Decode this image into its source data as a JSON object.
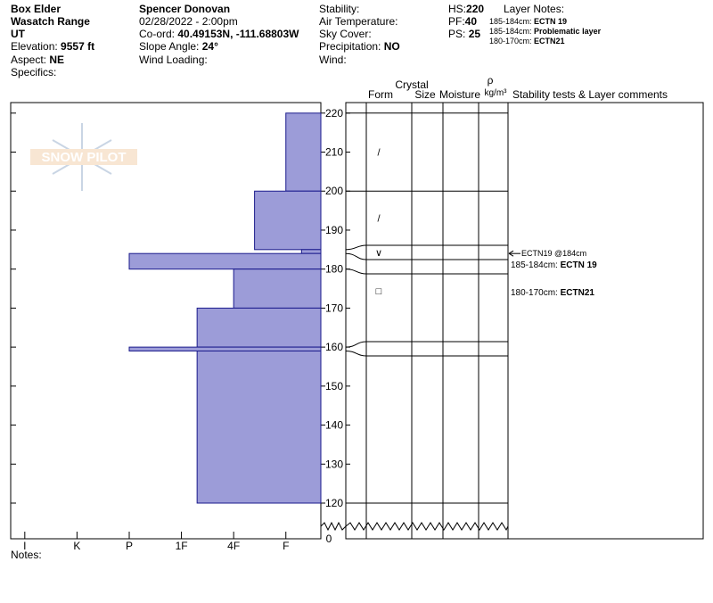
{
  "header": {
    "location": [
      "Box Elder",
      "Wasatch Range",
      "UT"
    ],
    "elevation": {
      "label": "Elevation:",
      "value": "9557 ft"
    },
    "aspect": {
      "label": "Aspect:",
      "value": "NE"
    },
    "specifics": "Specifics:",
    "observer": "Spencer Donovan",
    "datetime": "02/28/2022 - 2:00pm",
    "coord": {
      "label": "Co-ord:",
      "value": "40.49153N, -111.68803W"
    },
    "slope": {
      "label": "Slope Angle:",
      "value": "24°"
    },
    "wind_loading": "Wind Loading:",
    "stability": "Stability:",
    "air_temp": "Air Temperature:",
    "sky": "Sky Cover:",
    "precip": {
      "label": "Precipitation:",
      "value": "NO"
    },
    "wind": "Wind:",
    "hs": {
      "label": "HS:",
      "value": 220
    },
    "pf": {
      "label": "PF:",
      "value": 40
    },
    "ps": {
      "label": "PS:",
      "value": 25
    },
    "layer_notes": {
      "title": "Layer Notes:",
      "items": [
        {
          "range": "185-184cm:",
          "note": "ECTN 19"
        },
        {
          "range": "185-184cm:",
          "note": "Problematic layer"
        },
        {
          "range": "180-170cm:",
          "note": "ECTN21"
        }
      ]
    }
  },
  "profile": {
    "logo": "SNOW PILOT",
    "columns": {
      "form": "Form",
      "crystal": "Crystal",
      "size": "Size",
      "moisture": "Moisture",
      "rho": "ρ",
      "density_unit": "kg/m³",
      "comments": "Stability tests & Layer comments"
    },
    "hardness_lim": [
      0.73,
      6.67
    ],
    "hardness_ticks": [
      {
        "value": 1,
        "label": "I"
      },
      {
        "value": 2,
        "label": "K"
      },
      {
        "value": 3,
        "label": "P"
      },
      {
        "value": 4,
        "label": "1F"
      },
      {
        "value": 5,
        "label": "4F"
      },
      {
        "value": 6,
        "label": "F"
      }
    ],
    "depth_lim": [
      120,
      222.7
    ],
    "depth_ticks": [
      120,
      130,
      140,
      150,
      160,
      170,
      180,
      190,
      200,
      210,
      220
    ],
    "depth_zero": 0,
    "layers": [
      {
        "top": 220,
        "bottom": 200,
        "hardness": 6,
        "form": "/"
      },
      {
        "top": 200,
        "bottom": 185,
        "hardness": 5.4,
        "form": "/"
      },
      {
        "top": 185,
        "bottom": 184,
        "hardness": 6.3,
        "form": "∨"
      },
      {
        "top": 184,
        "bottom": 180,
        "hardness": 3
      },
      {
        "top": 180,
        "bottom": 170,
        "hardness": 5,
        "form": "□"
      },
      {
        "top": 170,
        "bottom": 160,
        "hardness": 4.3
      },
      {
        "top": 160,
        "bottom": 159,
        "hardness": 3
      },
      {
        "top": 159,
        "bottom": 120,
        "hardness": 4.3
      }
    ],
    "test_marker": {
      "label": "ECTN19 @184cm",
      "depth": 184
    },
    "comments": [
      {
        "range": "185-184cm:",
        "note": "ECTN 19"
      },
      {
        "range": "180-170cm:",
        "note": "ECTN21"
      }
    ]
  },
  "notes": "Notes:"
}
